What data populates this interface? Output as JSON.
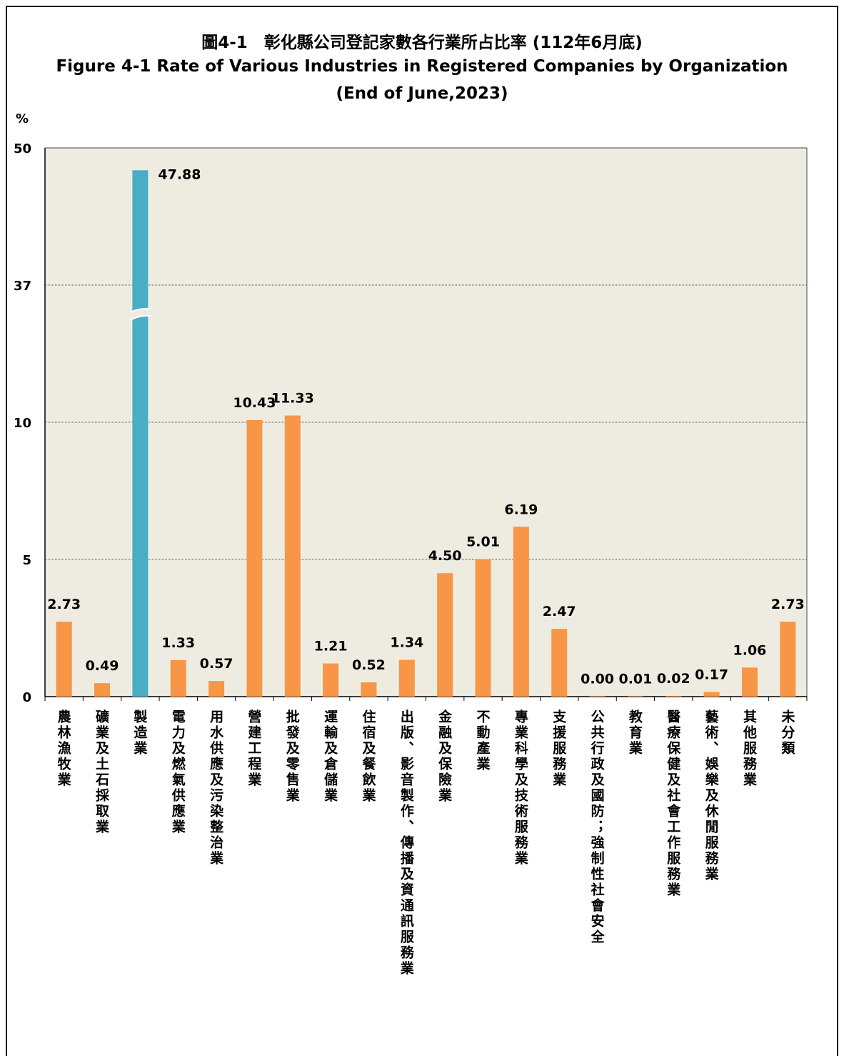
{
  "title_zh": "圖4-1　彰化縣公司登記家數各行業所占比率 (112年6月底)",
  "title_en": "Figure 4-1  Rate of Various Industries in Registered Companies by Organization",
  "title_en2": "(End of June,2023)",
  "unit_label": "%",
  "colors": {
    "bar": "#F79646",
    "highlight": "#4BACC6",
    "plot_bg": "#EEECE1",
    "grid": "#555555"
  },
  "chart_data": {
    "type": "bar",
    "categories": [
      "農林漁牧業",
      "礦業及土石採取業",
      "製造業",
      "電力及燃氣供應業",
      "用水供應及污染整治業",
      "營建工程業",
      "批發及零售業",
      "運輸及倉儲業",
      "住宿及餐飲業",
      "出版、影音製作、傳播及資通訊服務業",
      "金融及保險業",
      "不動產業",
      "專業科學及技術服務業",
      "支援服務業",
      "公共行政及國防；強制性社會安全",
      "教育業",
      "醫療保健及社會工作服務業",
      "藝術、娛樂及休閒服務業",
      "其他服務業",
      "未分類"
    ],
    "values": [
      2.73,
      0.49,
      47.88,
      1.33,
      0.57,
      10.43,
      11.33,
      1.21,
      0.52,
      1.34,
      4.5,
      5.01,
      6.19,
      2.47,
      0.0,
      0.01,
      0.02,
      0.17,
      1.06,
      2.73
    ],
    "value_labels": [
      "2.73",
      "0.49",
      "47.88",
      "1.33",
      "0.57",
      "10.43",
      "11.33",
      "1.21",
      "0.52",
      "1.34",
      "4.50",
      "5.01",
      "6.19",
      "2.47",
      "0.00",
      "0.01",
      "0.02",
      "0.17",
      "1.06",
      "2.73"
    ],
    "yticks": [
      0,
      5,
      10,
      37,
      50
    ],
    "ylim": [
      0,
      50
    ],
    "axis_break": true,
    "grid": true,
    "highlight_index": 2
  }
}
